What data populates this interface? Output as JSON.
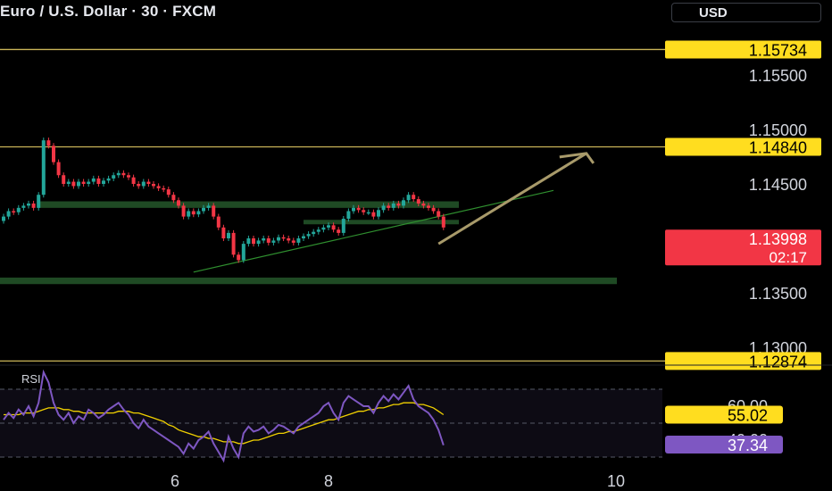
{
  "header": {
    "symbol_title": "Euro / U.S. Dollar · 30 · FXCM",
    "currency_button": "USD"
  },
  "colors": {
    "up": "#23a69a",
    "down": "#f23645",
    "level_line": "#c9b458",
    "zone": "#1f4a24",
    "trendline": "#2f8f2f",
    "arrow": "#a89a6a",
    "price_tag": "#f23645",
    "highlight_tag": "#ffdd1f",
    "rsi_line": "#7e57c2",
    "rsi_ma": "#f0d000"
  },
  "chart_data": {
    "type": "candlestick",
    "title": "Euro / U.S. Dollar · 30 · FXCM",
    "y_axis": {
      "ticks": [
        "1.15500",
        "1.15000",
        "1.14500",
        "1.13500",
        "1.13000"
      ],
      "ylim": [
        1.1275,
        1.1595
      ]
    },
    "x_axis": {
      "ticks": [
        "6",
        "8",
        "10"
      ]
    },
    "price_series": [
      1.142,
      1.1425,
      1.1424,
      1.1428,
      1.143,
      1.1432,
      1.1428,
      1.144,
      1.149,
      1.1485,
      1.147,
      1.1458,
      1.145,
      1.1452,
      1.1448,
      1.1452,
      1.145,
      1.1452,
      1.1455,
      1.145,
      1.1453,
      1.1455,
      1.1458,
      1.146,
      1.1458,
      1.1456,
      1.145,
      1.1448,
      1.1452,
      1.145,
      1.1448,
      1.1446,
      1.1445,
      1.144,
      1.1435,
      1.143,
      1.142,
      1.1425,
      1.1422,
      1.1425,
      1.1428,
      1.143,
      1.142,
      1.141,
      1.14,
      1.1405,
      1.1385,
      1.138,
      1.1395,
      1.14,
      1.1395,
      1.1398,
      1.14,
      1.1396,
      1.1398,
      1.1401,
      1.14,
      1.1398,
      1.1396,
      1.14,
      1.1402,
      1.1404,
      1.1406,
      1.1408,
      1.141,
      1.1412,
      1.1408,
      1.1405,
      1.1418,
      1.1425,
      1.1428,
      1.1426,
      1.1424,
      1.1424,
      1.142,
      1.1426,
      1.143,
      1.1428,
      1.1432,
      1.143,
      1.1435,
      1.144,
      1.1436,
      1.1432,
      1.143,
      1.1428,
      1.1425,
      1.142,
      1.141
    ],
    "price_lines": [
      {
        "label": "1.15734",
        "value": 1.15734
      },
      {
        "label": "1.14840",
        "value": 1.1484
      },
      {
        "label": "1.12874",
        "value": 1.12874
      }
    ],
    "current_price": {
      "label": "1.13998",
      "value": 1.13998,
      "countdown": "02:17"
    },
    "zones": [
      {
        "from_bar": 7,
        "to_bar": 90,
        "low": 1.1428,
        "high": 1.1434
      },
      {
        "from_bar": 60,
        "to_bar": 90,
        "low": 1.1413,
        "high": 1.1417
      },
      {
        "from_bar": 0,
        "to_bar": 115,
        "low": 1.1358,
        "high": 1.1364
      }
    ],
    "trendline": {
      "from_bar": 38,
      "from_value": 1.1369,
      "to_bar": 110,
      "to_value": 1.1444
    },
    "projection_arrow": {
      "from_bar": 87,
      "from_value": 1.1395,
      "to_bar": 113,
      "to_value": 1.1478
    },
    "rsi": {
      "label": "RSI",
      "ticks": [
        "60.00",
        "40.00"
      ],
      "ylim": [
        25,
        85
      ],
      "levels": [
        70,
        50,
        30
      ],
      "rsi_value": "37.34",
      "ma_value": "55.02",
      "rsi_series": [
        52,
        56,
        53,
        58,
        55,
        60,
        54,
        62,
        80,
        74,
        62,
        55,
        52,
        56,
        50,
        54,
        52,
        58,
        56,
        53,
        55,
        58,
        60,
        62,
        58,
        55,
        50,
        47,
        52,
        48,
        46,
        44,
        42,
        40,
        38,
        36,
        32,
        38,
        35,
        40,
        42,
        45,
        38,
        33,
        28,
        42,
        35,
        30,
        44,
        48,
        45,
        46,
        48,
        44,
        46,
        49,
        48,
        46,
        44,
        48,
        50,
        52,
        54,
        56,
        60,
        62,
        56,
        52,
        62,
        66,
        64,
        62,
        60,
        60,
        56,
        62,
        66,
        63,
        67,
        64,
        68,
        72,
        64,
        60,
        58,
        56,
        52,
        46,
        37
      ],
      "ma_series": [
        55,
        55,
        55,
        55,
        56,
        56,
        56,
        57,
        58,
        59,
        59,
        59,
        58,
        58,
        57,
        57,
        56,
        56,
        56,
        56,
        56,
        56,
        56,
        57,
        57,
        57,
        56,
        56,
        55,
        54,
        53,
        52,
        51,
        49,
        48,
        46,
        45,
        44,
        43,
        42,
        42,
        41,
        41,
        40,
        39,
        39,
        39,
        38,
        38,
        39,
        40,
        40,
        41,
        42,
        43,
        44,
        44,
        45,
        45,
        46,
        47,
        48,
        49,
        50,
        51,
        52,
        52,
        53,
        54,
        55,
        56,
        57,
        57,
        58,
        58,
        59,
        59,
        60,
        61,
        61,
        62,
        62,
        62,
        61,
        61,
        60,
        59,
        57,
        55
      ]
    }
  }
}
